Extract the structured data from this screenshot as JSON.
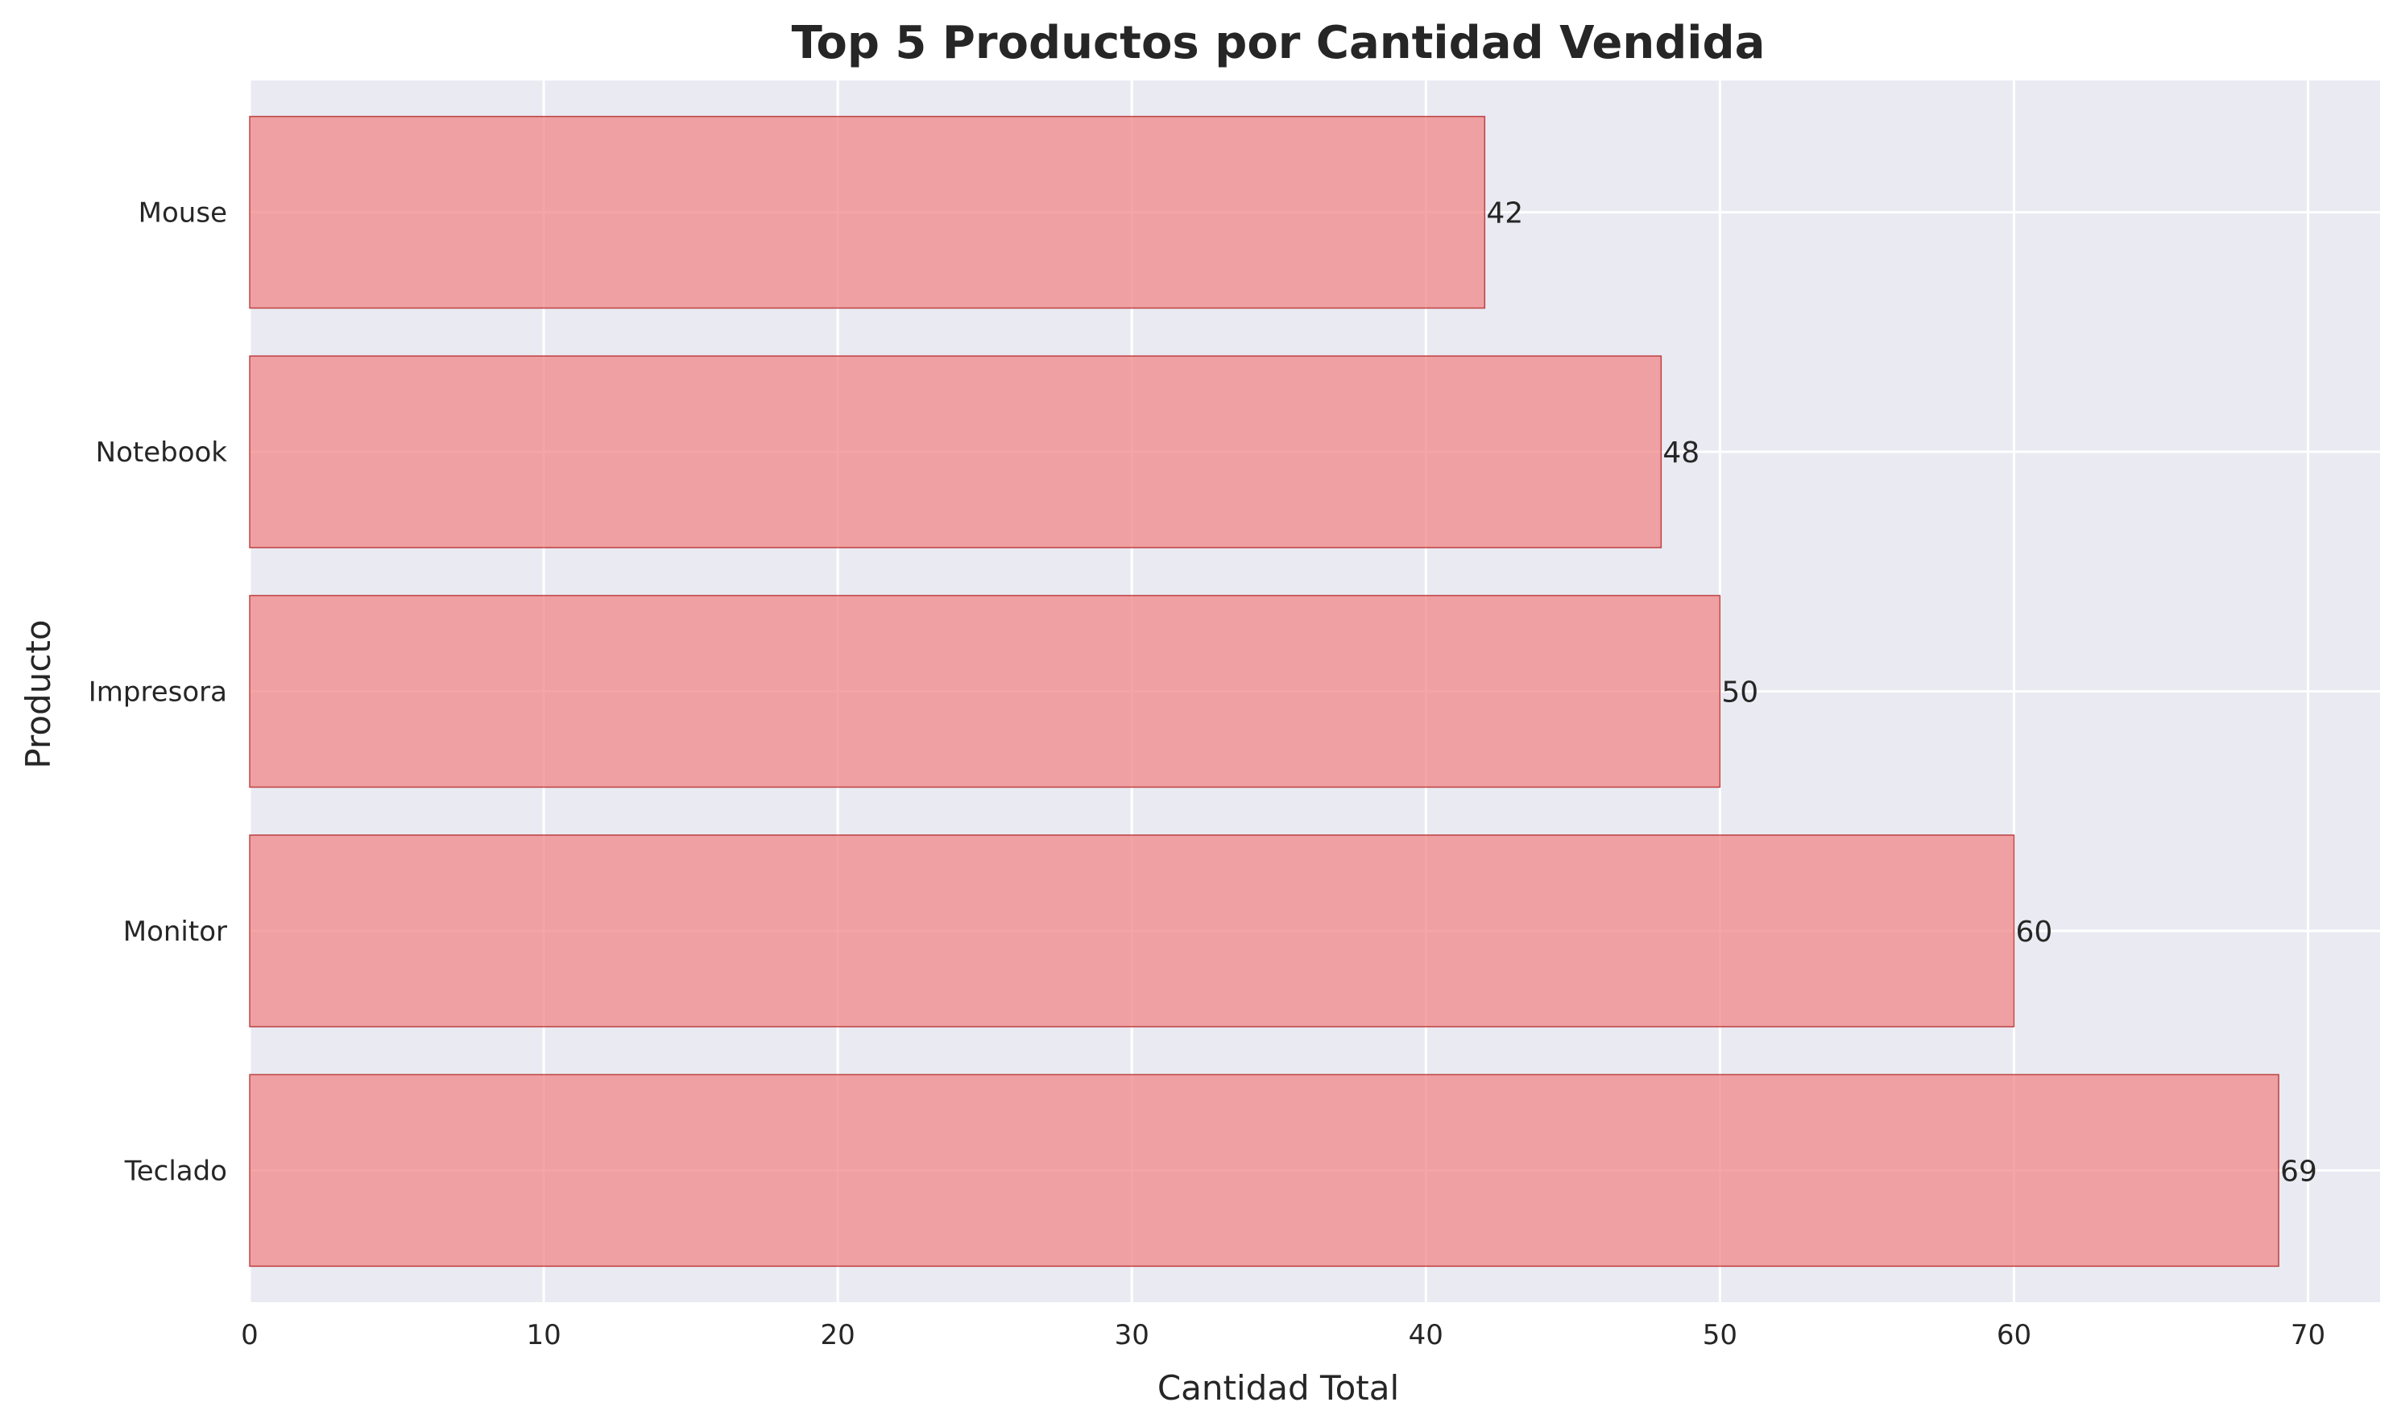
{
  "chart_data": {
    "type": "bar",
    "orientation": "horizontal",
    "title": "Top 5 Productos por Cantidad Vendida",
    "xlabel": "Cantidad Total",
    "ylabel": "Producto",
    "categories": [
      "Teclado",
      "Monitor",
      "Impresora",
      "Notebook",
      "Mouse"
    ],
    "values": [
      69,
      60,
      50,
      48,
      42
    ],
    "xlim": [
      0,
      72.45
    ],
    "xticks": [
      0,
      10,
      20,
      30,
      40,
      50,
      60,
      70
    ],
    "grid": true,
    "colors": {
      "bar_fill": "#F08080",
      "bar_edge": "#B22222",
      "plot_background": "#EAEAF2",
      "grid": "#FFFFFF",
      "text": "#262626"
    }
  }
}
